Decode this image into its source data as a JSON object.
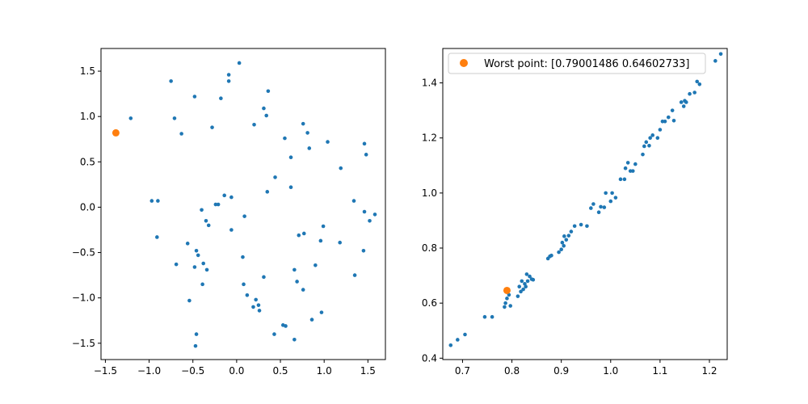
{
  "chart_data": [
    {
      "type": "scatter",
      "title": "",
      "xlabel": "",
      "ylabel": "",
      "xlim": [
        -1.55,
        1.7
      ],
      "ylim": [
        -1.68,
        1.75
      ],
      "xticks": [
        -1.5,
        -1.0,
        -0.5,
        0.0,
        0.5,
        1.0,
        1.5
      ],
      "yticks": [
        -1.5,
        -1.0,
        -0.5,
        0.0,
        0.5,
        1.0,
        1.5
      ],
      "grid": false,
      "series": [
        {
          "color": "#1f77b4",
          "marker_size": "small",
          "x": [
            0.03,
            -0.09,
            -0.09,
            -0.75,
            -0.48,
            -0.18,
            0.36,
            0.31,
            0.34,
            0.2,
            -0.71,
            -0.63,
            -0.28,
            -1.21,
            0.81,
            0.76,
            0.55,
            1.04,
            0.83,
            0.62,
            1.46,
            1.48,
            1.19,
            0.44,
            0.62,
            0.35,
            -0.14,
            -0.06,
            -0.21,
            -0.24,
            -0.4,
            -0.35,
            -0.32,
            0.09,
            1.34,
            1.46,
            1.52,
            1.58,
            0.99,
            0.71,
            0.77,
            0.96,
            1.18,
            1.45,
            -0.97,
            -0.9,
            -0.91,
            -0.56,
            -0.06,
            0.07,
            -0.69,
            -0.46,
            -0.44,
            -0.48,
            -0.38,
            -0.34,
            0.08,
            0.31,
            0.12,
            0.22,
            0.25,
            0.19,
            0.26,
            0.66,
            0.69,
            0.76,
            0.9,
            1.35,
            -0.39,
            -0.54,
            -0.46,
            -0.47,
            0.97,
            0.53,
            0.56,
            0.43,
            0.86,
            0.66
          ],
          "y": [
            1.59,
            1.46,
            1.39,
            1.39,
            1.22,
            1.2,
            1.28,
            1.09,
            1.01,
            0.91,
            0.98,
            0.81,
            0.88,
            0.98,
            0.82,
            0.92,
            0.76,
            0.72,
            0.65,
            0.55,
            0.7,
            0.58,
            0.43,
            0.33,
            0.22,
            0.17,
            0.13,
            0.11,
            0.03,
            0.03,
            -0.03,
            -0.15,
            -0.2,
            -0.1,
            0.07,
            -0.05,
            -0.15,
            -0.08,
            -0.21,
            -0.31,
            -0.29,
            -0.37,
            -0.39,
            -0.48,
            0.07,
            0.07,
            -0.33,
            -0.4,
            -0.25,
            -0.55,
            -0.63,
            -0.48,
            -0.53,
            -0.66,
            -0.62,
            -0.69,
            -0.85,
            -0.77,
            -0.97,
            -1.02,
            -1.08,
            -1.1,
            -1.14,
            -0.69,
            -0.82,
            -0.91,
            -0.64,
            -0.75,
            -0.85,
            -1.03,
            -1.4,
            -1.53,
            -1.16,
            -1.3,
            -1.31,
            -1.4,
            -1.24,
            -1.46
          ]
        },
        {
          "color": "#ff7f0e",
          "marker_size": "large",
          "x": [
            -1.38
          ],
          "y": [
            0.82
          ]
        }
      ]
    },
    {
      "type": "scatter",
      "title": "",
      "xlabel": "",
      "ylabel": "",
      "xlim": [
        0.66,
        1.236
      ],
      "ylim": [
        0.395,
        1.525
      ],
      "xticks": [
        0.7,
        0.8,
        0.9,
        1.0,
        1.1,
        1.2
      ],
      "yticks": [
        0.4,
        0.6,
        0.8,
        1.0,
        1.2,
        1.4
      ],
      "grid": false,
      "legend": {
        "placement": "top-left",
        "entries": [
          {
            "label": "Worst point: [0.79001486 0.64602733]",
            "color": "#ff7f0e"
          }
        ]
      },
      "series": [
        {
          "color": "#1f77b4",
          "marker_size": "small",
          "x": [
            0.676,
            0.69,
            0.705,
            0.745,
            0.76,
            0.785,
            0.787,
            0.79,
            0.794,
            0.797,
            0.812,
            0.815,
            0.818,
            0.82,
            0.823,
            0.826,
            0.828,
            0.83,
            0.832,
            0.836,
            0.84,
            0.843,
            0.873,
            0.877,
            0.88,
            0.895,
            0.9,
            0.902,
            0.905,
            0.906,
            0.91,
            0.915,
            0.92,
            0.927,
            0.94,
            0.952,
            0.96,
            0.965,
            0.976,
            0.98,
            0.987,
            0.99,
            1.0,
            1.003,
            1.01,
            1.02,
            1.028,
            1.03,
            1.035,
            1.04,
            1.045,
            1.05,
            1.065,
            1.068,
            1.072,
            1.078,
            1.08,
            1.085,
            1.095,
            1.1,
            1.105,
            1.11,
            1.117,
            1.125,
            1.128,
            1.143,
            1.148,
            1.15,
            1.153,
            1.16,
            1.17,
            1.175,
            1.18,
            1.212,
            1.223
          ],
          "y": [
            0.447,
            0.467,
            0.486,
            0.55,
            0.55,
            0.586,
            0.6,
            0.617,
            0.63,
            0.59,
            0.625,
            0.66,
            0.642,
            0.68,
            0.65,
            0.67,
            0.66,
            0.705,
            0.68,
            0.697,
            0.687,
            0.685,
            0.762,
            0.77,
            0.773,
            0.785,
            0.795,
            0.82,
            0.808,
            0.843,
            0.83,
            0.845,
            0.86,
            0.88,
            0.885,
            0.88,
            0.945,
            0.96,
            0.93,
            0.95,
            0.948,
            1.0,
            0.97,
            1.0,
            0.983,
            1.05,
            1.05,
            1.09,
            1.11,
            1.08,
            1.08,
            1.105,
            1.14,
            1.17,
            1.185,
            1.172,
            1.2,
            1.21,
            1.2,
            1.23,
            1.26,
            1.26,
            1.275,
            1.3,
            1.263,
            1.33,
            1.315,
            1.335,
            1.33,
            1.36,
            1.365,
            1.405,
            1.395,
            1.48,
            1.505
          ]
        },
        {
          "color": "#ff7f0e",
          "marker_size": "large",
          "x": [
            0.79001486
          ],
          "y": [
            0.64602733
          ]
        }
      ]
    }
  ]
}
